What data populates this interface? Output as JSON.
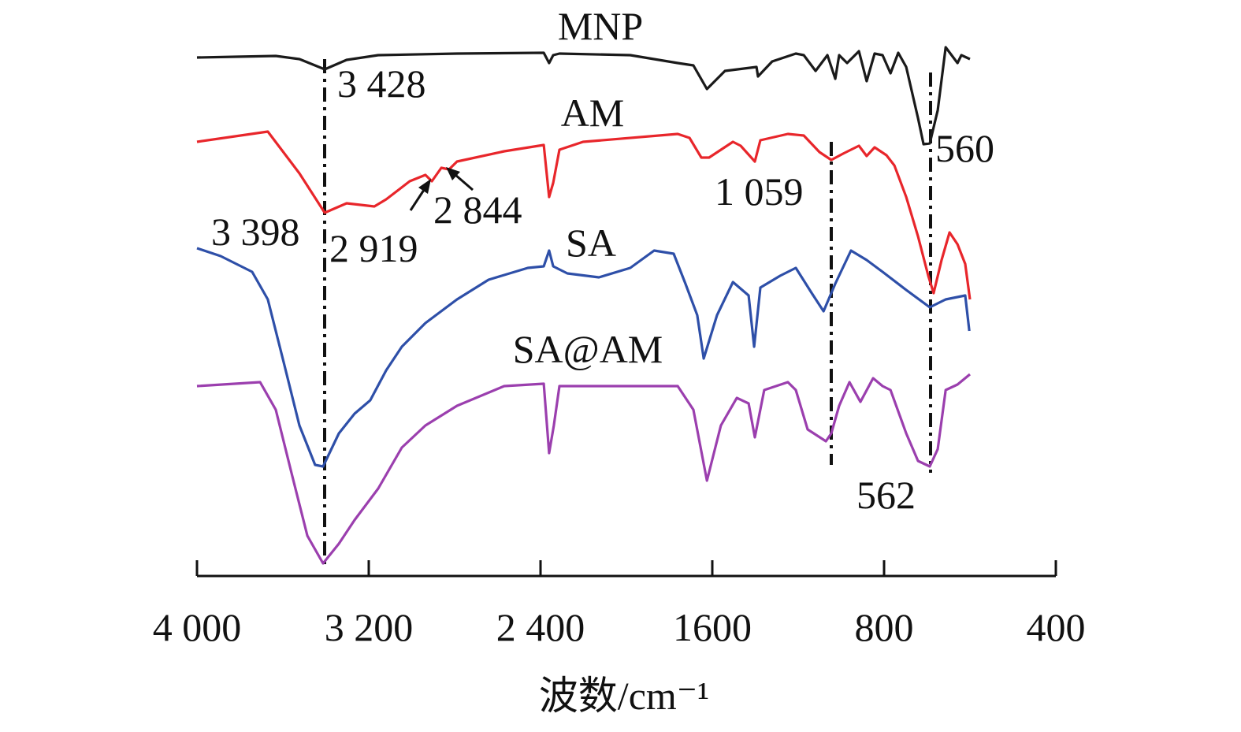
{
  "chart_data": {
    "type": "line",
    "title": "",
    "xlabel": "波数/cm⁻¹",
    "ylabel": "",
    "x_tick_labels": [
      "4 000",
      "3 200",
      "2 400",
      "1600",
      "800",
      "400"
    ],
    "x_direction": "reversed",
    "y_units": "relative transmittance (a.u., curves vertically offset)",
    "grid": false,
    "legend": "none (curves labeled directly)",
    "series": [
      {
        "name": "MNP",
        "color": "#1a1a1a",
        "points": [
          [
            4000,
            66.7
          ],
          [
            3817,
            66.8
          ],
          [
            3633,
            66.9
          ],
          [
            3523,
            66.5
          ],
          [
            3405,
            65.2
          ],
          [
            3303,
            66.4
          ],
          [
            3156,
            67
          ],
          [
            2789,
            67.2
          ],
          [
            2385,
            67.3
          ],
          [
            2360,
            66
          ],
          [
            2341,
            67
          ],
          [
            2312,
            67.2
          ],
          [
            1982,
            67
          ],
          [
            1761,
            66
          ],
          [
            1688,
            65.7
          ],
          [
            1625,
            62.7
          ],
          [
            1541,
            65
          ],
          [
            1394,
            65.5
          ],
          [
            1387,
            64.3
          ],
          [
            1321,
            66.2
          ],
          [
            1211,
            67.2
          ],
          [
            1174,
            67
          ],
          [
            1119,
            65
          ],
          [
            1064,
            67
          ],
          [
            1027,
            64
          ],
          [
            1009,
            67
          ],
          [
            972,
            66
          ],
          [
            917,
            67.5
          ],
          [
            881,
            63.7
          ],
          [
            844,
            67.2
          ],
          [
            807,
            67
          ],
          [
            770,
            64.7
          ],
          [
            734,
            67.3
          ],
          [
            697,
            65.5
          ],
          [
            642,
            59
          ],
          [
            616,
            55.7
          ],
          [
            587,
            55.8
          ],
          [
            550,
            60
          ],
          [
            513,
            68
          ],
          [
            458,
            66
          ],
          [
            440,
            67
          ],
          [
            400,
            66.5
          ]
        ]
      },
      {
        "name": "AM",
        "color": "#e8262b",
        "points": [
          [
            4000,
            56
          ],
          [
            3670,
            57.3
          ],
          [
            3523,
            52
          ],
          [
            3405,
            47
          ],
          [
            3303,
            48.2
          ],
          [
            3174,
            47.8
          ],
          [
            3119,
            48.7
          ],
          [
            3009,
            51
          ],
          [
            2936,
            51.8
          ],
          [
            2906,
            51
          ],
          [
            2862,
            52.7
          ],
          [
            2826,
            52.5
          ],
          [
            2789,
            53.5
          ],
          [
            2569,
            54.8
          ],
          [
            2385,
            55.6
          ],
          [
            2360,
            49
          ],
          [
            2341,
            50.8
          ],
          [
            2312,
            55
          ],
          [
            2202,
            56
          ],
          [
            1761,
            57
          ],
          [
            1706,
            56.5
          ],
          [
            1651,
            54
          ],
          [
            1615,
            54
          ],
          [
            1504,
            56
          ],
          [
            1468,
            55.5
          ],
          [
            1402,
            53.5
          ],
          [
            1376,
            56.2
          ],
          [
            1248,
            57
          ],
          [
            1174,
            56.8
          ],
          [
            1101,
            54.7
          ],
          [
            1046,
            53.7
          ],
          [
            991,
            54.5
          ],
          [
            917,
            55.5
          ],
          [
            881,
            54.2
          ],
          [
            844,
            55.3
          ],
          [
            789,
            54.3
          ],
          [
            752,
            53
          ],
          [
            697,
            49
          ],
          [
            642,
            44
          ],
          [
            594,
            39
          ],
          [
            569,
            36.8
          ],
          [
            532,
            41
          ],
          [
            495,
            44.5
          ],
          [
            458,
            43
          ],
          [
            422,
            40.5
          ],
          [
            400,
            36
          ]
        ]
      },
      {
        "name": "SA",
        "color": "#2e4fa8",
        "points": [
          [
            4000,
            42.5
          ],
          [
            3890,
            41.5
          ],
          [
            3743,
            39.5
          ],
          [
            3670,
            36
          ],
          [
            3633,
            32
          ],
          [
            3596,
            28
          ],
          [
            3523,
            20
          ],
          [
            3450,
            15
          ],
          [
            3413,
            14.8
          ],
          [
            3339,
            19
          ],
          [
            3266,
            21.5
          ],
          [
            3193,
            23.2
          ],
          [
            3119,
            27
          ],
          [
            3046,
            30
          ],
          [
            2936,
            33
          ],
          [
            2789,
            36
          ],
          [
            2642,
            38.5
          ],
          [
            2459,
            40
          ],
          [
            2385,
            40.2
          ],
          [
            2360,
            42.2
          ],
          [
            2341,
            40.2
          ],
          [
            2275,
            39.3
          ],
          [
            2128,
            38.8
          ],
          [
            1982,
            40
          ],
          [
            1871,
            42.2
          ],
          [
            1780,
            41.8
          ],
          [
            1725,
            38
          ],
          [
            1670,
            34
          ],
          [
            1640,
            28.5
          ],
          [
            1578,
            34
          ],
          [
            1504,
            38.2
          ],
          [
            1431,
            36.5
          ],
          [
            1405,
            30
          ],
          [
            1376,
            37.5
          ],
          [
            1284,
            39
          ],
          [
            1211,
            40
          ],
          [
            1137,
            36.8
          ],
          [
            1082,
            34.5
          ],
          [
            1027,
            38
          ],
          [
            954,
            42.2
          ],
          [
            881,
            41
          ],
          [
            807,
            39.5
          ],
          [
            697,
            37.2
          ],
          [
            587,
            35
          ],
          [
            513,
            36
          ],
          [
            422,
            36.5
          ],
          [
            403,
            32
          ]
        ]
      },
      {
        "name": "SA@AM",
        "color": "#9b3fae",
        "points": [
          [
            4000,
            25
          ],
          [
            3706,
            25.5
          ],
          [
            3633,
            22
          ],
          [
            3560,
            14
          ],
          [
            3486,
            6
          ],
          [
            3413,
            2.5
          ],
          [
            3339,
            5
          ],
          [
            3266,
            8
          ],
          [
            3156,
            12
          ],
          [
            3046,
            17.2
          ],
          [
            2936,
            20
          ],
          [
            2789,
            22.5
          ],
          [
            2569,
            25
          ],
          [
            2385,
            25.3
          ],
          [
            2360,
            16.5
          ],
          [
            2338,
            20
          ],
          [
            2312,
            25
          ],
          [
            1761,
            25
          ],
          [
            1688,
            22
          ],
          [
            1625,
            13
          ],
          [
            1560,
            20
          ],
          [
            1486,
            23.5
          ],
          [
            1431,
            22.8
          ],
          [
            1402,
            18.5
          ],
          [
            1358,
            24.5
          ],
          [
            1248,
            25.5
          ],
          [
            1211,
            24.5
          ],
          [
            1156,
            19.5
          ],
          [
            1071,
            18
          ],
          [
            1046,
            19
          ],
          [
            1009,
            22.5
          ],
          [
            961,
            25.5
          ],
          [
            910,
            23
          ],
          [
            851,
            26
          ],
          [
            807,
            25
          ],
          [
            770,
            24.5
          ],
          [
            697,
            19
          ],
          [
            642,
            15.5
          ],
          [
            587,
            14.8
          ],
          [
            550,
            17
          ],
          [
            513,
            24.5
          ],
          [
            458,
            25.2
          ],
          [
            400,
            26.5
          ]
        ]
      }
    ],
    "annotations": [
      "3 428",
      "2 919",
      "2 844",
      "3 398",
      "1 059",
      "560",
      "562"
    ]
  }
}
